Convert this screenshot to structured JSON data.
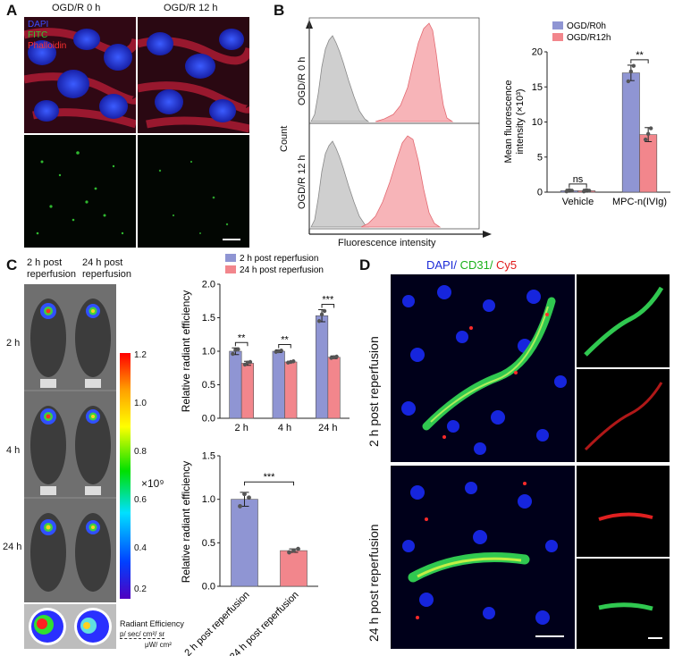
{
  "panels": {
    "A": {
      "letter": "A",
      "col_labels": [
        "OGD/R 0 h",
        "OGD/R 12 h"
      ],
      "channels": [
        {
          "name": "DAPI",
          "color": "#3a4cff"
        },
        {
          "name": "FITC",
          "color": "#34c834"
        },
        {
          "name": "Phalloidin",
          "color": "#ff3030"
        }
      ]
    },
    "B": {
      "letter": "B",
      "hist": {
        "row_labels": [
          "OGD/R 0 h",
          "OGD/R 12 h"
        ],
        "ylabel": "Count",
        "xlabel": "Fluorescence intensity"
      }
    },
    "C": {
      "letter": "C",
      "col_labels": [
        "2 h post reperfusion",
        "24 h post reperfusion"
      ],
      "row_labels": [
        "2 h",
        "4 h",
        "24 h"
      ],
      "colorbar": {
        "ticks": [
          "1.2",
          "1.0",
          "0.8",
          "0.6",
          "0.4",
          "0.2"
        ],
        "multiplier": "×10⁹",
        "title": "Radiant Efficiency",
        "units_num": "p/ sec/ cm²/ sr",
        "units_den": "μW/ cm²"
      }
    },
    "D": {
      "letter": "D",
      "title_parts": [
        {
          "text": "DAPI/ ",
          "color": "#1d2bd8"
        },
        {
          "text": "CD31/ ",
          "color": "#1bb11b"
        },
        {
          "text": "Cy5",
          "color": "#e11b1b"
        }
      ],
      "row_labels": [
        "2 h post reperfusion",
        "24 h post reperfusion"
      ]
    }
  },
  "chart_data": [
    {
      "id": "B-bar",
      "type": "bar",
      "categories": [
        "Vehicle",
        "MPC-n(IVIg)"
      ],
      "series": [
        {
          "name": "OGD/R0h",
          "color": "#8f95d3",
          "values": [
            0.2,
            17.0
          ],
          "errors": [
            0.2,
            1.1
          ],
          "points": [
            [
              0.1,
              0.3,
              0.2
            ],
            [
              15.8,
              17.2,
              18.0
            ]
          ]
        },
        {
          "name": "OGD/R12h",
          "color": "#f2868c",
          "values": [
            0.2,
            8.2
          ],
          "errors": [
            0.2,
            1.0
          ],
          "points": [
            [
              0.1,
              0.3,
              0.2
            ],
            [
              7.5,
              8.3,
              9.1
            ]
          ]
        }
      ],
      "ylabel": "Mean fluorescence intensity (×10³)",
      "ylabel_line1": "Mean fluorescence",
      "ylabel_line2": "intensity (×10³)",
      "yticks": [
        "0",
        "5",
        "10",
        "15",
        "20"
      ],
      "ylim": [
        0,
        20
      ],
      "annotations": [
        {
          "label": "ns",
          "category": 0
        },
        {
          "label": "**",
          "category": 1
        }
      ],
      "legend": "top-right"
    },
    {
      "id": "C-bar-top",
      "type": "bar",
      "categories": [
        "2 h",
        "4 h",
        "24 h"
      ],
      "series": [
        {
          "name": "2 h post reperfusion",
          "color": "#8f95d3",
          "values": [
            1.0,
            1.0,
            1.53
          ],
          "errors": [
            0.05,
            0.02,
            0.09
          ],
          "points": [
            [
              0.96,
              1.02,
              1.03
            ],
            [
              0.99,
              1.0,
              1.01
            ],
            [
              1.45,
              1.55,
              1.6
            ]
          ]
        },
        {
          "name": "24 h post reperfusion",
          "color": "#f2868c",
          "values": [
            0.82,
            0.84,
            0.91
          ],
          "errors": [
            0.03,
            0.01,
            0.02
          ],
          "points": [
            [
              0.8,
              0.83,
              0.84
            ],
            [
              0.83,
              0.84,
              0.85
            ],
            [
              0.9,
              0.91,
              0.92
            ]
          ]
        }
      ],
      "ylabel": "Relative radiant efficiency",
      "yticks": [
        "0.0",
        "0.5",
        "1.0",
        "1.5",
        "2.0"
      ],
      "ylim": [
        0,
        2
      ],
      "annotations": [
        {
          "label": "**",
          "category": 0
        },
        {
          "label": "**",
          "category": 1
        },
        {
          "label": "***",
          "category": 2
        }
      ],
      "legend": "top-left"
    },
    {
      "id": "C-bar-bottom",
      "type": "bar",
      "categories": [
        "2 h post reperfusion",
        "24 h post reperfusion"
      ],
      "values": [
        1.0,
        0.41
      ],
      "errors": [
        0.08,
        0.02
      ],
      "colors": [
        "#8f95d3",
        "#f2868c"
      ],
      "points": [
        [
          0.92,
          1.06,
          1.02
        ],
        [
          0.39,
          0.41,
          0.43
        ]
      ],
      "ylabel": "Relative radiant efficiency",
      "yticks": [
        "0.0",
        "0.5",
        "1.0",
        "1.5"
      ],
      "ylim": [
        0,
        1.5
      ],
      "annotations": [
        {
          "label": "***"
        }
      ]
    }
  ]
}
